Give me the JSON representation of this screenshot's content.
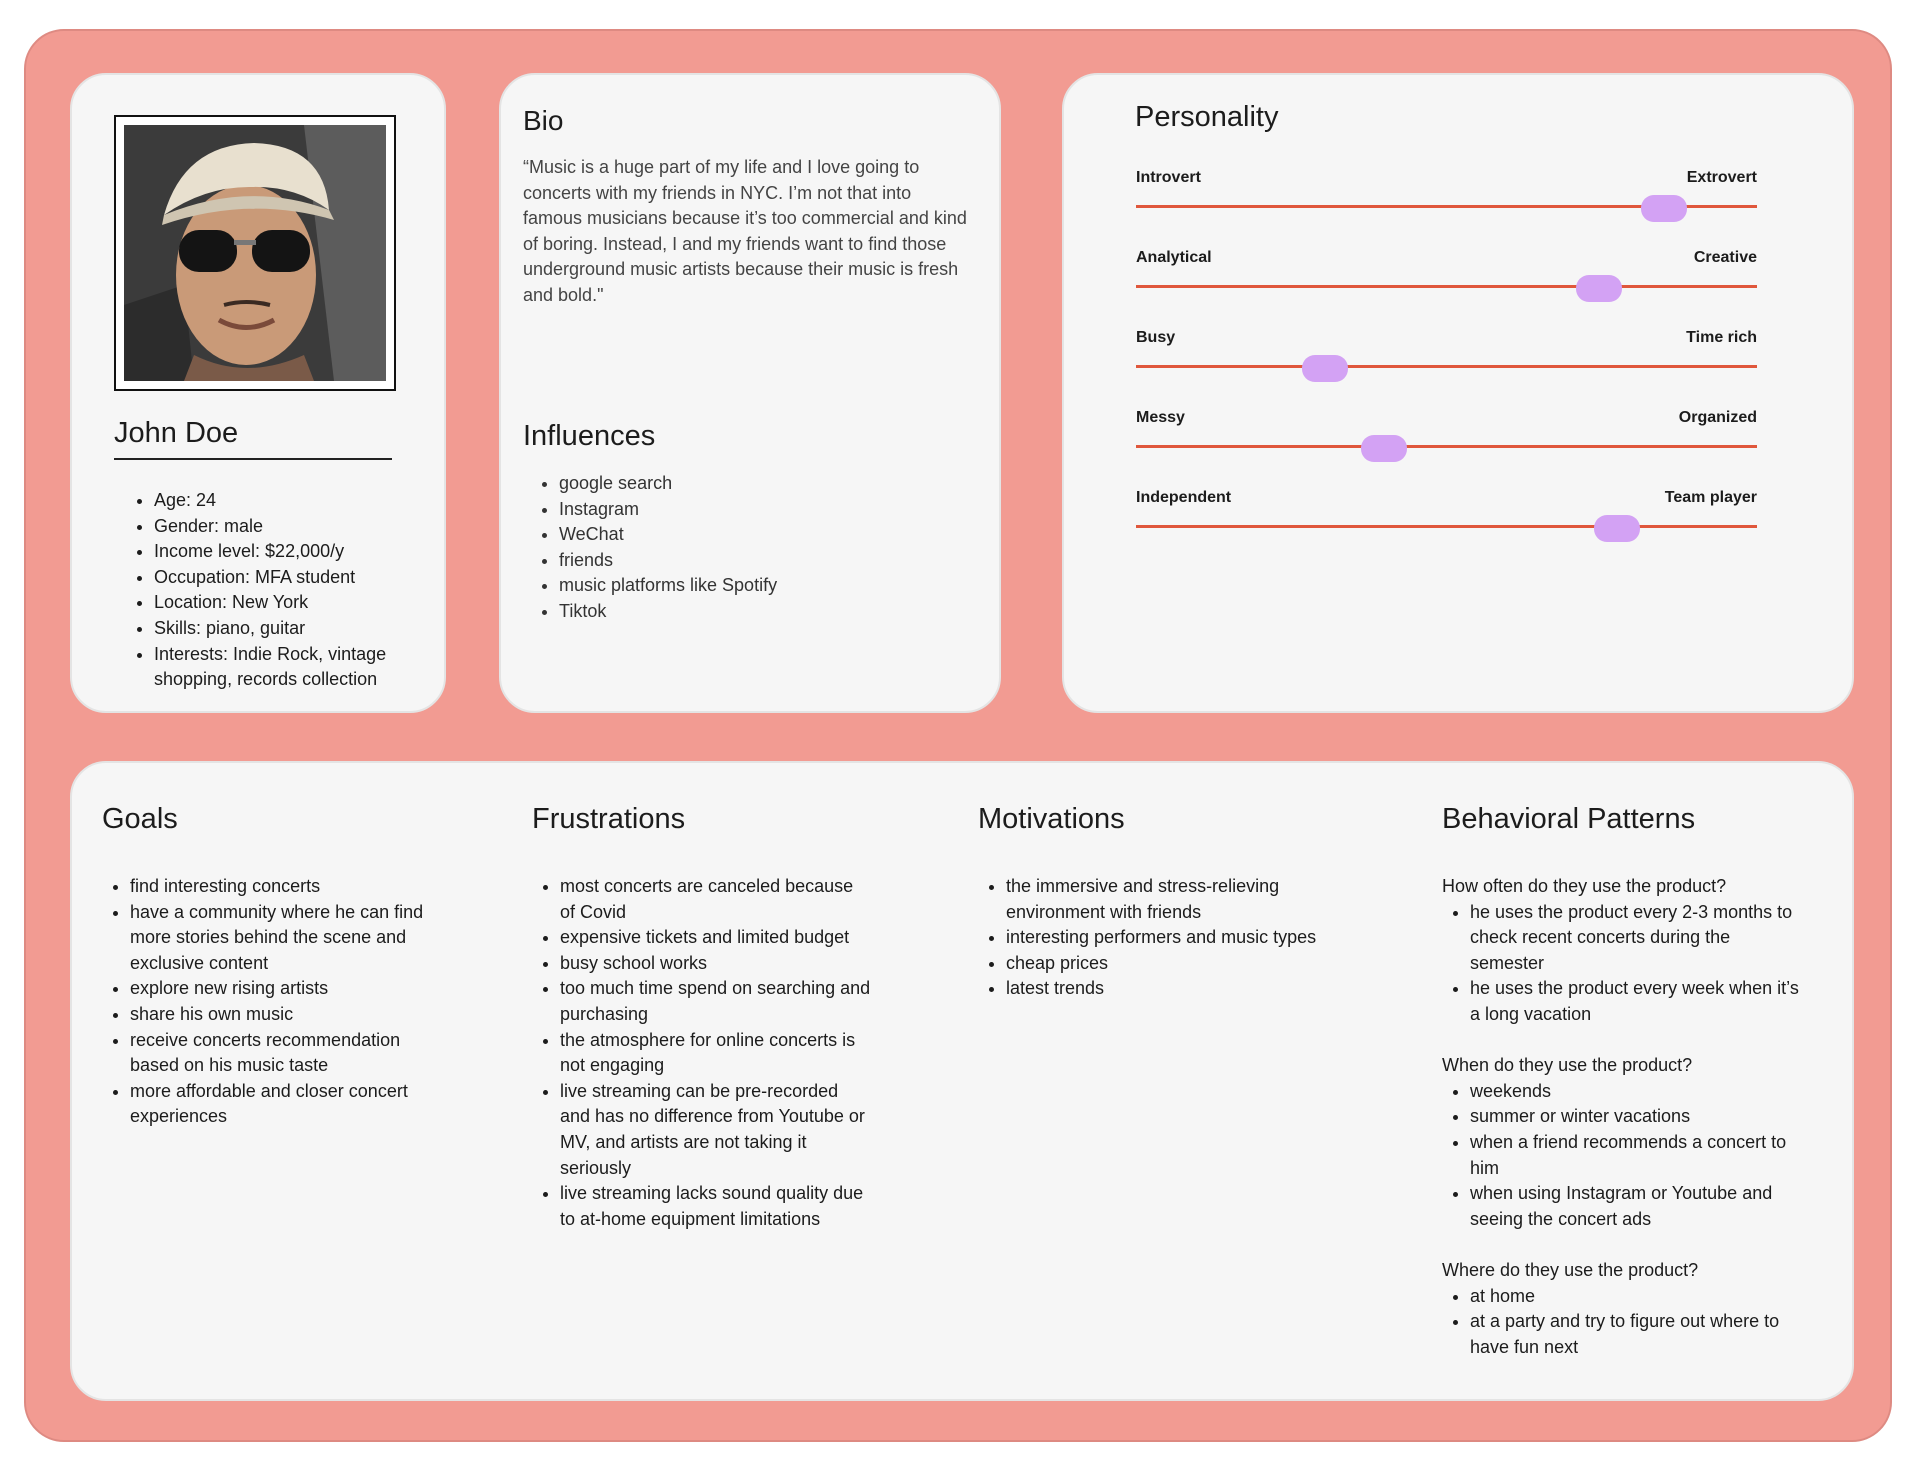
{
  "profile": {
    "name": "John Doe",
    "details": [
      "Age: 24",
      "Gender: male",
      "Income level: $22,000/y",
      "Occupation: MFA student",
      "Location: New York",
      "Skills: piano, guitar",
      "Interests: Indie Rock, vintage shopping, records collection"
    ]
  },
  "bio": {
    "title": "Bio",
    "text": "“Music is a huge part of my life and I love going to concerts with my friends in NYC. I’m not that into famous musicians because it’s too commercial and kind of boring. Instead, I and my friends want to find those underground music artists because their music is fresh and bold.\""
  },
  "influences": {
    "title": "Influences",
    "items": [
      "google search",
      "Instagram",
      "WeChat",
      "friends",
      "music platforms like Spotify",
      "Tiktok"
    ]
  },
  "personality": {
    "title": "Personality",
    "traits": [
      {
        "left": "Introvert",
        "right": "Extrovert",
        "level": 0.85
      },
      {
        "left": "Analytical",
        "right": "Creative",
        "level": 0.745
      },
      {
        "left": "Busy",
        "right": "Time rich",
        "level": 0.305
      },
      {
        "left": "Messy",
        "right": "Organized",
        "level": 0.4
      },
      {
        "left": "Independent",
        "right": "Team player",
        "level": 0.775
      }
    ],
    "colors": {
      "track": "#e0573c",
      "knob": "#d3a2f4"
    }
  },
  "goals": {
    "title": "Goals",
    "items": [
      "find interesting concerts",
      "have a community where he can find more stories behind the scene and exclusive content",
      "explore new rising artists",
      "share his own music",
      "receive concerts recommendation based on his music taste",
      "more affordable and closer concert experiences"
    ]
  },
  "frustrations": {
    "title": "Frustrations",
    "items": [
      "most concerts are canceled because of Covid",
      "expensive tickets and limited budget",
      "busy school works",
      "too much time spend on searching and purchasing",
      "the atmosphere for online concerts is not engaging",
      "live streaming can be pre-recorded and has no difference from Youtube or MV, and artists are not taking it seriously",
      "live streaming lacks sound quality due to at-home equipment limitations"
    ]
  },
  "motivations": {
    "title": "Motivations",
    "items": [
      "the immersive and stress-relieving environment with friends",
      "interesting performers and music types",
      "cheap prices",
      "latest trends"
    ]
  },
  "behavioral": {
    "title": "Behavioral Patterns",
    "groups": [
      {
        "question": "How often do they use the product?",
        "items": [
          "he uses the product every 2-3 months to check recent concerts during the semester",
          "he uses the product every week when it’s a long vacation"
        ]
      },
      {
        "question": "When do they use the product?",
        "items": [
          "weekends",
          "summer or winter vacations",
          "when a friend recommends a concert to him",
          "when using Instagram or Youtube and seeing the concert ads"
        ]
      },
      {
        "question": "Where do they use the product?",
        "items": [
          "at home",
          "at a party and try to figure out where to have fun next"
        ]
      }
    ]
  },
  "colors": {
    "frame": "#f29b92",
    "card": "#f6f6f6",
    "accent": "#e0573c",
    "knob": "#d3a2f4"
  }
}
